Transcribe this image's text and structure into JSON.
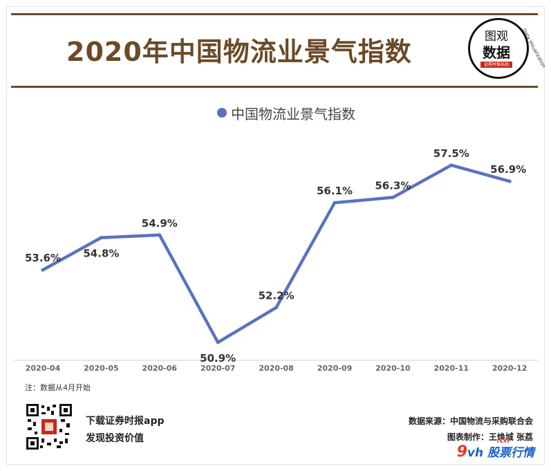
{
  "title": "2020年中国物流业景气指数",
  "badge": {
    "line1": "图观",
    "line2": "数据",
    "bar_text": "证券时报出品",
    "arc_text": "Data Visualization"
  },
  "colors": {
    "title": "#6b4a26",
    "series": "#5a72c0",
    "badge_bar": "#c8281e"
  },
  "note": "注：数据从4月开始",
  "promo": {
    "line1": "下载证券时报app",
    "line2": "发现投资价值"
  },
  "source": {
    "line1": "数据来源：中国物流与采购联合会",
    "line2": "图表制作：王焕城 张荔"
  },
  "watermark": {
    "nine": "9",
    "vh": "vh",
    "cn": ".cn",
    "text": "股票行情"
  },
  "qr_icon": "qr-code-icon",
  "chart_data": {
    "type": "line",
    "title": "2020年中国物流业景气指数",
    "categories": [
      "2020-04",
      "2020-05",
      "2020-06",
      "2020-07",
      "2020-08",
      "2020-09",
      "2020-10",
      "2020-11",
      "2020-12"
    ],
    "series": [
      {
        "name": "中国物流业景气指数",
        "values": [
          53.6,
          54.8,
          54.9,
          50.9,
          52.2,
          56.1,
          56.3,
          57.5,
          56.9
        ],
        "labels": [
          "53.6%",
          "54.8%",
          "54.9%",
          "50.9%",
          "52.2%",
          "56.1%",
          "56.3%",
          "57.5%",
          "56.9%"
        ]
      }
    ],
    "ylim": [
      50,
      58.5
    ],
    "grid": false,
    "legend": "top-center",
    "xlabel": "",
    "ylabel": ""
  }
}
